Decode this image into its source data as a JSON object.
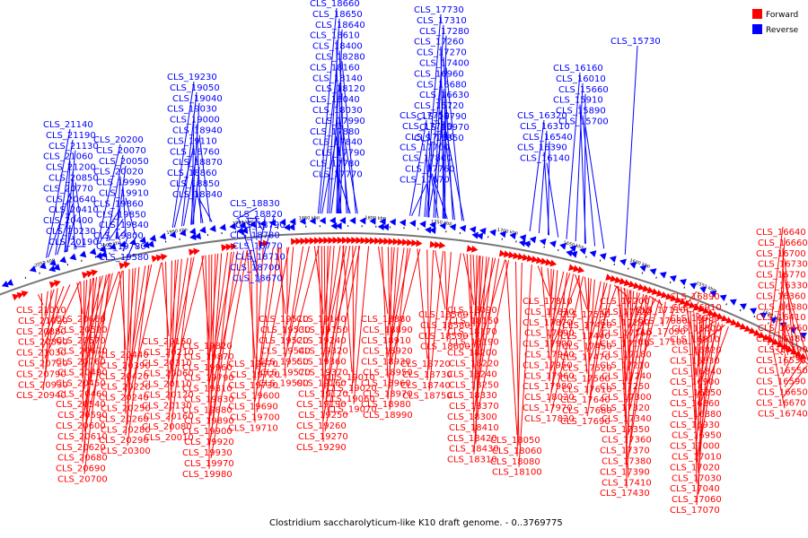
{
  "caption": "Clostridium saccharolyticum-like K10 draft genome. - 0..3769775",
  "legend": [
    {
      "label": "Forward",
      "color": "#ff0000"
    },
    {
      "label": "Reverse",
      "color": "#0000ff"
    }
  ],
  "colors": {
    "forward": "#ff0000",
    "reverse": "#0000ff",
    "backbone": "#777777",
    "text": "#000000"
  },
  "scale_labels": [
    "2050 kbp",
    "2000 kbp",
    "1950 kbp",
    "1900 kbp",
    "1850 kbp",
    "1800 kbp",
    "1750 kbp",
    "1700 kbp",
    "1650 kbp",
    "1600 kbp",
    "1550 kbp",
    "1500 kbp"
  ],
  "reverse_labels": [
    "CLS_21140",
    "CLS_21190",
    "CLS_21130",
    "CLS_21060",
    "CLS_21200",
    "CLS_20850",
    "CLS_20770",
    "CLS_20640",
    "CLS_20410",
    "CLS_20400",
    "CLS_20230",
    "CLS_20190",
    "CLS_20200",
    "CLS_20070",
    "CLS_20050",
    "CLS_20020",
    "CLS_19990",
    "CLS_19910",
    "CLS_19860",
    "CLS_19850",
    "CLS_19840",
    "CLS_19800",
    "CLS_19780",
    "CLS_19580",
    "CLS_19230",
    "CLS_19050",
    "CLS_19040",
    "CLS_19030",
    "CLS_19000",
    "CLS_18940",
    "CLS_19110",
    "CLS_18760",
    "CLS_18870",
    "CLS_18860",
    "CLS_18850",
    "CLS_18840",
    "CLS_18830",
    "CLS_18820",
    "CLS_18790",
    "CLS_18780",
    "CLS_18770",
    "CLS_18710",
    "CLS_18700",
    "CLS_18670",
    "CLS_18660",
    "CLS_18650",
    "CLS_18640",
    "CLS_18610",
    "CLS_18400",
    "CLS_18280",
    "CLS_18160",
    "CLS_18140",
    "CLS_18120",
    "CLS_18040",
    "CLS_18030",
    "CLS_17990",
    "CLS_17880",
    "CLS_17840",
    "CLS_17790",
    "CLS_17780",
    "CLS_17770",
    "CLS_17750",
    "CLS_17740",
    "CLS_17710",
    "CLS_17700",
    "CLS_17800",
    "CLS_17760",
    "CLS_17670",
    "CLS_17730",
    "CLS_17310",
    "CLS_17280",
    "CLS_17260",
    "CLS_17270",
    "CLS_17400",
    "CLS_16960",
    "CLS_16680",
    "CLS_16630",
    "CLS_16720",
    "CLS_16790",
    "CLS_16970",
    "CLS_16350",
    "CLS_16320",
    "CLS_16310",
    "CLS_16540",
    "CLS_16390",
    "CLS_16140",
    "CLS_16160",
    "CLS_16010",
    "CLS_15660",
    "CLS_15910",
    "CLS_15890",
    "CLS_15700",
    "CLS_15730"
  ],
  "forward_labels": [
    "CLS_21010",
    "CLS_21020",
    "CLS_20880",
    "CLS_20890",
    "CLS_21030",
    "CLS_20720",
    "CLS_20790",
    "CLS_20930",
    "CLS_20940",
    "CLS_20660",
    "CLS_20520",
    "CLS_20570",
    "CLS_20670",
    "CLS_20760",
    "CLS_20490",
    "CLS_20450",
    "CLS_20460",
    "CLS_20540",
    "CLS_20590",
    "CLS_20600",
    "CLS_20610",
    "CLS_20620",
    "CLS_20680",
    "CLS_20690",
    "CLS_20700",
    "CLS_20440",
    "CLS_20390",
    "CLS_20420",
    "CLS_20220",
    "CLS_20240",
    "CLS_20250",
    "CLS_20260",
    "CLS_20280",
    "CLS_20290",
    "CLS_20300",
    "CLS_20150",
    "CLS_20210",
    "CLS_20310",
    "CLS_20060",
    "CLS_20110",
    "CLS_20120",
    "CLS_20130",
    "CLS_20160",
    "CLS_20080",
    "CLS_20010",
    "CLS_19820",
    "CLS_19870",
    "CLS_19960",
    "CLS_19790",
    "CLS_19810",
    "CLS_19830",
    "CLS_19880",
    "CLS_19890",
    "CLS_19900",
    "CLS_19920",
    "CLS_19930",
    "CLS_19970",
    "CLS_19980",
    "CLS_19670",
    "CLS_19720",
    "CLS_19730",
    "CLS_19600",
    "CLS_19690",
    "CLS_19700",
    "CLS_19710",
    "CLS_19510",
    "CLS_19530",
    "CLS_19520",
    "CLS_19540",
    "CLS_19550",
    "CLS_19570",
    "CLS_19590",
    "CLS_19140",
    "CLS_19150",
    "CLS_19240",
    "CLS_19320",
    "CLS_19360",
    "CLS_19370",
    "CLS_19160",
    "CLS_19170",
    "CLS_19190",
    "CLS_19250",
    "CLS_19260",
    "CLS_19270",
    "CLS_19290",
    "CLS_19010",
    "CLS_19020",
    "CLS_19060",
    "CLS_19070",
    "CLS_18880",
    "CLS_18890",
    "CLS_18910",
    "CLS_18920",
    "CLS_18930",
    "CLS_18950",
    "CLS_18960",
    "CLS_18970",
    "CLS_18980",
    "CLS_18990",
    "CLS_18720",
    "CLS_18730",
    "CLS_18740",
    "CLS_18750",
    "CLS_18560",
    "CLS_18580",
    "CLS_18590",
    "CLS_18600",
    "CLS_18090",
    "CLS_18150",
    "CLS_18170",
    "CLS_18190",
    "CLS_18200",
    "CLS_18220",
    "CLS_18240",
    "CLS_18250",
    "CLS_18330",
    "CLS_18370",
    "CLS_18300",
    "CLS_18410",
    "CLS_18420",
    "CLS_18430",
    "CLS_18310",
    "CLS_18050",
    "CLS_18060",
    "CLS_18080",
    "CLS_18100",
    "CLS_17810",
    "CLS_17830",
    "CLS_17870",
    "CLS_17890",
    "CLS_17900",
    "CLS_17940",
    "CLS_17950",
    "CLS_17960",
    "CLS_17980",
    "CLS_18020",
    "CLS_17970",
    "CLS_17820",
    "CLS_17530",
    "CLS_17420",
    "CLS_17440",
    "CLS_17450",
    "CLS_17470",
    "CLS_17520",
    "CLS_17560",
    "CLS_17610",
    "CLS_17640",
    "CLS_17680",
    "CLS_17690",
    "CLS_17200",
    "CLS_17220",
    "CLS_17230",
    "CLS_17160",
    "CLS_17170",
    "CLS_17180",
    "CLS_17210",
    "CLS_17240",
    "CLS_17250",
    "CLS_17300",
    "CLS_17320",
    "CLS_17340",
    "CLS_17350",
    "CLS_17360",
    "CLS_17370",
    "CLS_17380",
    "CLS_17390",
    "CLS_17410",
    "CLS_17430",
    "CLS_17110",
    "CLS_17080",
    "CLS_17090",
    "CLS_17100",
    "CLS_16890",
    "CLS_16910",
    "CLS_16980",
    "CLS_16800",
    "CLS_16810",
    "CLS_16820",
    "CLS_16830",
    "CLS_16840",
    "CLS_16900",
    "CLS_16850",
    "CLS_16860",
    "CLS_16880",
    "CLS_16930",
    "CLS_16950",
    "CLS_17000",
    "CLS_17010",
    "CLS_17020",
    "CLS_17030",
    "CLS_17040",
    "CLS_17060",
    "CLS_17070",
    "CLS_16640",
    "CLS_16660",
    "CLS_16700",
    "CLS_16730",
    "CLS_16770",
    "CLS_16330",
    "CLS_16360",
    "CLS_16380",
    "CLS_16410",
    "CLS_16460",
    "CLS_16480",
    "CLS_16490",
    "CLS_16530",
    "CLS_16550",
    "CLS_16590",
    "CLS_16650",
    "CLS_16670",
    "CLS_16740"
  ]
}
